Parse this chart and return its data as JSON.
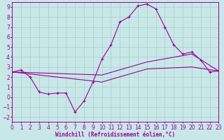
{
  "xlabel": "Windchill (Refroidissement éolien,°C)",
  "xlim": [
    0,
    23
  ],
  "ylim": [
    -2.5,
    9.5
  ],
  "yticks": [
    -2,
    -1,
    0,
    1,
    2,
    3,
    4,
    5,
    6,
    7,
    8,
    9
  ],
  "xticks": [
    0,
    1,
    2,
    3,
    4,
    5,
    6,
    7,
    8,
    9,
    10,
    11,
    12,
    13,
    14,
    15,
    16,
    17,
    18,
    19,
    20,
    21,
    22,
    23
  ],
  "bg_color": "#c8e8e8",
  "grid_color": "#aacccc",
  "line_color": "#990099",
  "line1_x": [
    0,
    1,
    2,
    3,
    4,
    5,
    6,
    7,
    8,
    9,
    10,
    11,
    12,
    13,
    14,
    15,
    16,
    17,
    18,
    19,
    20,
    21,
    22,
    23
  ],
  "line1_y": [
    2.5,
    2.7,
    2.0,
    0.5,
    0.3,
    0.4,
    0.4,
    -1.5,
    -0.4,
    1.5,
    3.8,
    5.2,
    7.5,
    8.0,
    9.1,
    9.3,
    8.8,
    7.0,
    5.2,
    4.3,
    4.5,
    3.7,
    2.5,
    2.6
  ],
  "line2_x": [
    0,
    10,
    15,
    20,
    23
  ],
  "line2_y": [
    2.5,
    2.2,
    3.5,
    4.3,
    2.6
  ],
  "line3_x": [
    0,
    10,
    15,
    20,
    23
  ],
  "line3_y": [
    2.5,
    1.5,
    2.8,
    3.0,
    2.6
  ],
  "xlabel_fontsize": 5.5,
  "tick_fontsize": 5.5
}
